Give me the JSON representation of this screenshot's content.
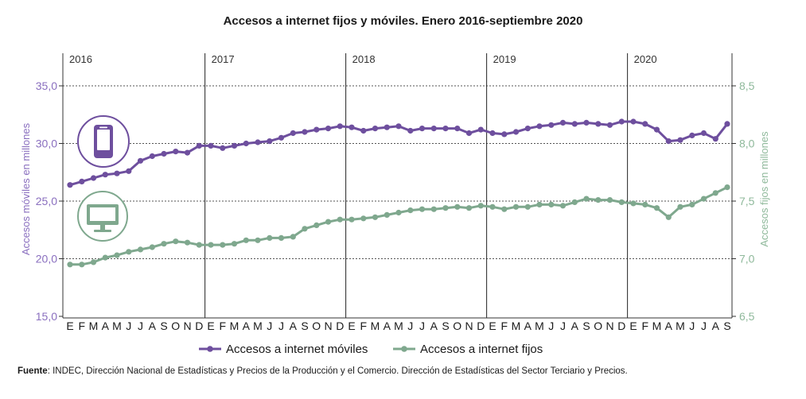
{
  "title": "Accesos a internet fijos y móviles. Enero 2016-septiembre 2020",
  "source_label": "Fuente",
  "source_text": ": INDEC, Dirección Nacional de Estadísticas y Precios de la Producción y el Comercio. Dirección de Estadísticas del Sector Terciario y Precios.",
  "colors": {
    "moviles": "#6e4f9e",
    "fijos": "#7fa88e",
    "axis_left": "#8a6fbf",
    "axis_right": "#8fb99b"
  },
  "icons": {
    "moviles": "smartphone-icon",
    "fijos": "monitor-icon"
  },
  "chart_data": {
    "type": "line",
    "years": [
      "2016",
      "2017",
      "2018",
      "2019",
      "2020"
    ],
    "month_labels": [
      "E",
      "F",
      "M",
      "A",
      "M",
      "J",
      "J",
      "A",
      "S",
      "O",
      "N",
      "D",
      "E",
      "F",
      "M",
      "A",
      "M",
      "J",
      "J",
      "A",
      "S",
      "O",
      "N",
      "D",
      "E",
      "F",
      "M",
      "A",
      "M",
      "J",
      "J",
      "A",
      "S",
      "O",
      "N",
      "D",
      "E",
      "F",
      "M",
      "A",
      "M",
      "J",
      "J",
      "A",
      "S",
      "O",
      "N",
      "D",
      "E",
      "F",
      "M",
      "A",
      "M",
      "J",
      "J",
      "A",
      "S"
    ],
    "ylabel_left": "Accesos móviles en millones",
    "ylabel_right": "Accesos fijos en millones",
    "ylim_left": [
      15,
      35
    ],
    "ylim_right": [
      6.5,
      8.5
    ],
    "yticks_left": [
      "35,0",
      "30,0",
      "25,0",
      "20,0",
      "15,0"
    ],
    "yticks_right": [
      "8,5",
      "8,0",
      "7,5",
      "7,0",
      "6,5"
    ],
    "series": [
      {
        "name": "Accesos a internet móviles",
        "axis": "left",
        "values": [
          26.4,
          26.7,
          27.0,
          27.3,
          27.4,
          27.6,
          28.5,
          28.9,
          29.1,
          29.3,
          29.2,
          29.8,
          29.8,
          29.6,
          29.8,
          30.0,
          30.1,
          30.2,
          30.5,
          30.9,
          31.0,
          31.2,
          31.3,
          31.5,
          31.4,
          31.1,
          31.3,
          31.4,
          31.5,
          31.1,
          31.3,
          31.3,
          31.3,
          31.3,
          30.9,
          31.2,
          30.9,
          30.8,
          31.0,
          31.3,
          31.5,
          31.6,
          31.8,
          31.7,
          31.8,
          31.7,
          31.6,
          31.9,
          31.9,
          31.7,
          31.2,
          30.2,
          30.3,
          30.7,
          30.9,
          30.4,
          31.7
        ]
      },
      {
        "name": "Accesos a internet fijos",
        "axis": "right",
        "values": [
          6.95,
          6.95,
          6.97,
          7.01,
          7.03,
          7.06,
          7.08,
          7.1,
          7.13,
          7.15,
          7.14,
          7.12,
          7.12,
          7.12,
          7.13,
          7.16,
          7.16,
          7.18,
          7.18,
          7.19,
          7.26,
          7.29,
          7.32,
          7.34,
          7.34,
          7.35,
          7.36,
          7.38,
          7.4,
          7.42,
          7.43,
          7.43,
          7.44,
          7.45,
          7.44,
          7.46,
          7.45,
          7.43,
          7.45,
          7.45,
          7.47,
          7.47,
          7.46,
          7.49,
          7.52,
          7.51,
          7.51,
          7.49,
          7.48,
          7.47,
          7.44,
          7.36,
          7.45,
          7.47,
          7.52,
          7.57,
          7.62
        ]
      }
    ]
  }
}
